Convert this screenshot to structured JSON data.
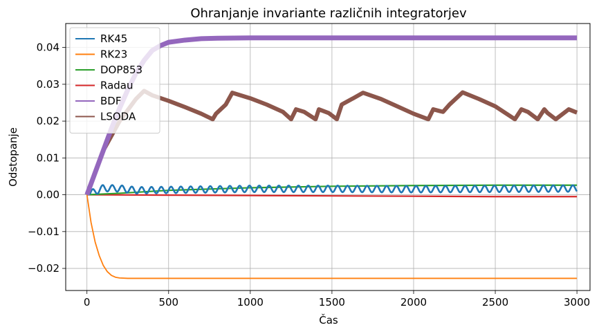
{
  "chart_data": {
    "type": "line",
    "title": "Ohranjanje invariante različnih integratorjev",
    "xlabel": "Čas",
    "ylabel": "Odstopanje",
    "xlim": [
      -130,
      3080
    ],
    "ylim": [
      -0.026,
      0.0465
    ],
    "xticks": [
      0,
      500,
      1000,
      1500,
      2000,
      2500,
      3000
    ],
    "xtick_labels": [
      "0",
      "500",
      "1000",
      "1500",
      "2000",
      "2500",
      "3000"
    ],
    "yticks": [
      -0.02,
      -0.01,
      0.0,
      0.01,
      0.02,
      0.03,
      0.04
    ],
    "ytick_labels": [
      "−0.02",
      "−0.01",
      "0.00",
      "0.01",
      "0.02",
      "0.03",
      "0.04"
    ],
    "grid": true,
    "legend": "top-left",
    "series": [
      {
        "name": "RK45",
        "color": "#1f77b4",
        "oscillation": {
          "amplitude": 0.0009,
          "period": 60,
          "start": 20
        },
        "x": [
          0,
          100,
          200,
          300,
          500,
          1000,
          1500,
          2000,
          2500,
          3000
        ],
        "y": [
          0.0,
          0.0018,
          0.0017,
          0.0012,
          0.0013,
          0.0016,
          0.0016,
          0.0015,
          0.0016,
          0.0017
        ]
      },
      {
        "name": "RK23",
        "color": "#ff7f0e",
        "x": [
          0,
          25,
          50,
          75,
          100,
          125,
          150,
          175,
          200,
          250,
          300,
          1000,
          2000,
          3000
        ],
        "y": [
          0.0,
          -0.0075,
          -0.0128,
          -0.0165,
          -0.0192,
          -0.0209,
          -0.0219,
          -0.0224,
          -0.0226,
          -0.0227,
          -0.0227,
          -0.0227,
          -0.0227,
          -0.0227
        ]
      },
      {
        "name": "DOP853",
        "color": "#2ca02c",
        "x": [
          0,
          200,
          500,
          1000,
          1500,
          2000,
          2500,
          3000
        ],
        "y": [
          0.0,
          0.0004,
          0.0012,
          0.0019,
          0.0023,
          0.0025,
          0.0026,
          0.0026
        ]
      },
      {
        "name": "Radau",
        "color": "#d62728",
        "x": [
          0,
          500,
          1000,
          1500,
          2000,
          2500,
          3000
        ],
        "y": [
          0.0,
          -0.0001,
          -0.0002,
          -0.0003,
          -0.0004,
          -0.0005,
          -0.0005
        ]
      },
      {
        "name": "BDF",
        "color": "#9467bd",
        "x": [
          0,
          50,
          100,
          150,
          200,
          250,
          300,
          350,
          400,
          450,
          500,
          600,
          700,
          800,
          1000,
          1500,
          2000,
          2500,
          3000
        ],
        "y": [
          0.0,
          0.006,
          0.012,
          0.018,
          0.0235,
          0.0285,
          0.033,
          0.0365,
          0.0392,
          0.0405,
          0.0414,
          0.042,
          0.0424,
          0.0425,
          0.0426,
          0.0426,
          0.0426,
          0.0426,
          0.0426
        ]
      },
      {
        "name": "LSODA",
        "color": "#8c564b",
        "x": [
          0,
          50,
          100,
          200,
          300,
          350,
          400,
          500,
          600,
          700,
          770,
          790,
          850,
          890,
          1000,
          1100,
          1200,
          1250,
          1280,
          1330,
          1400,
          1420,
          1480,
          1530,
          1560,
          1630,
          1690,
          1800,
          1900,
          2000,
          2090,
          2120,
          2180,
          2220,
          2300,
          2400,
          2500,
          2620,
          2660,
          2700,
          2760,
          2800,
          2820,
          2870,
          2950,
          3000
        ],
        "y": [
          0.0,
          0.006,
          0.012,
          0.02,
          0.026,
          0.0282,
          0.027,
          0.0255,
          0.0238,
          0.022,
          0.0205,
          0.022,
          0.0245,
          0.0277,
          0.0262,
          0.0245,
          0.0225,
          0.0205,
          0.0232,
          0.0225,
          0.0205,
          0.0232,
          0.0222,
          0.0205,
          0.0245,
          0.0262,
          0.0277,
          0.026,
          0.024,
          0.022,
          0.0205,
          0.0232,
          0.0225,
          0.0245,
          0.0278,
          0.026,
          0.024,
          0.0205,
          0.0232,
          0.0225,
          0.0205,
          0.0232,
          0.0222,
          0.0205,
          0.0232,
          0.0223
        ]
      }
    ]
  }
}
